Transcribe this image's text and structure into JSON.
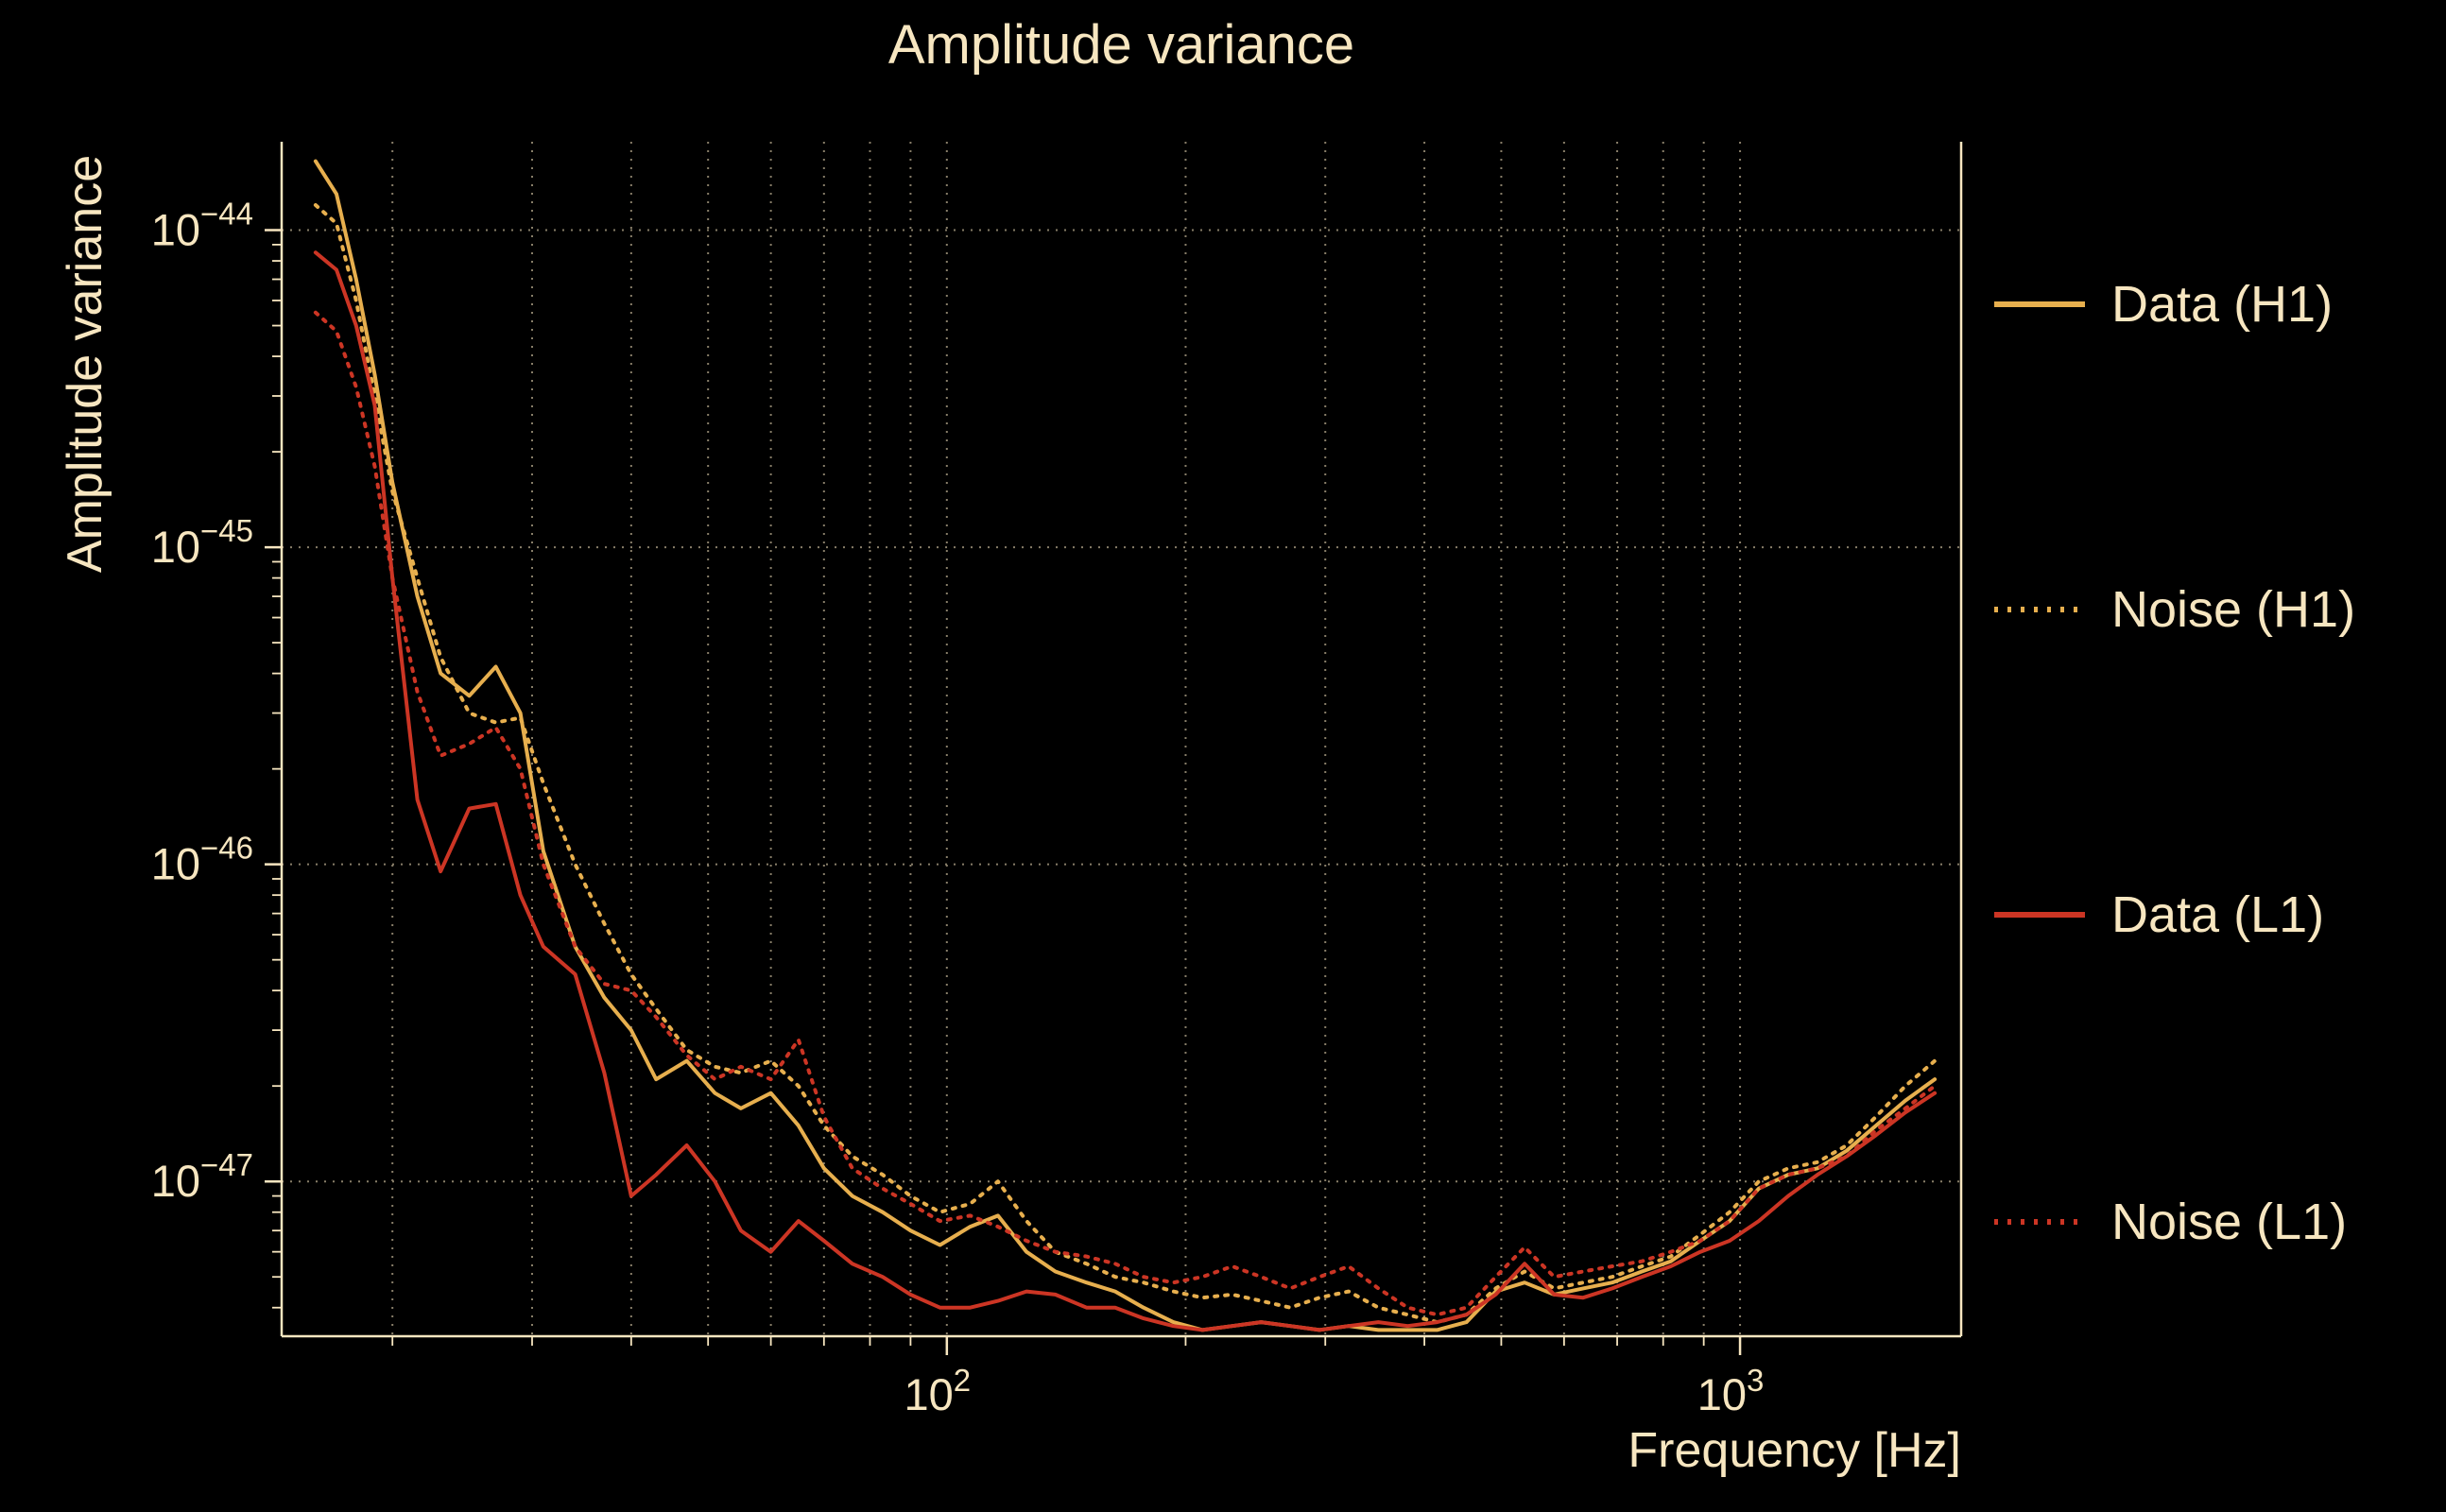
{
  "chart_data": {
    "type": "line",
    "title": "Amplitude variance",
    "xlabel": "Frequency [Hz]",
    "ylabel": "Amplitude variance",
    "xscale": "log",
    "yscale": "log",
    "xlim": [
      14.5,
      1900
    ],
    "ylim": [
      3.25e-48,
      1.9e-44
    ],
    "grid": true,
    "legend_position": "right",
    "background_color": "#000000",
    "text_color": "#f7e6c0",
    "grid_color": "#f7e6c0",
    "axis_color": "#f7e6c0",
    "x_grid": [
      20,
      30,
      40,
      50,
      60,
      70,
      80,
      90,
      100,
      200,
      300,
      400,
      500,
      600,
      700,
      800,
      900,
      1000
    ],
    "x_ticks": [
      {
        "v": 100,
        "base": "10",
        "exp": "2"
      },
      {
        "v": 1000,
        "base": "10",
        "exp": "3"
      }
    ],
    "y_ticks": [
      {
        "v": 1e-44,
        "base": "10",
        "exp": "−44"
      },
      {
        "v": 1e-45,
        "base": "10",
        "exp": "−45"
      },
      {
        "v": 1e-46,
        "base": "10",
        "exp": "−46"
      },
      {
        "v": 1e-47,
        "base": "10",
        "exp": "−47"
      }
    ],
    "x": [
      16,
      17,
      18,
      19,
      20,
      21.5,
      23,
      25,
      27,
      29,
      31,
      34,
      37,
      40,
      43,
      47,
      51,
      55,
      60,
      65,
      70,
      76,
      83,
      90,
      98,
      107,
      116,
      126,
      137,
      150,
      163,
      177,
      193,
      210,
      229,
      249,
      271,
      295,
      321,
      350,
      381,
      415,
      452,
      492,
      535,
      583,
      634,
      690,
      752,
      818,
      891,
      970,
      1056,
      1150,
      1252,
      1363,
      1484,
      1616,
      1760
    ],
    "series": [
      {
        "name": "Data (H1)",
        "color": "#e7af4e",
        "style": "solid",
        "values": [
          1.65e-44,
          1.3e-44,
          7e-45,
          3.5e-45,
          1.6e-45,
          7e-46,
          4e-46,
          3.4e-46,
          4.2e-46,
          3e-46,
          1.1e-46,
          5.5e-47,
          3.8e-47,
          3e-47,
          2.1e-47,
          2.4e-47,
          1.9e-47,
          1.7e-47,
          1.9e-47,
          1.5e-47,
          1.1e-47,
          9e-48,
          8e-48,
          7e-48,
          6.3e-48,
          7.2e-48,
          7.8e-48,
          6e-48,
          5.2e-48,
          4.8e-48,
          4.5e-48,
          4e-48,
          3.6e-48,
          3.4e-48,
          3.5e-48,
          3.6e-48,
          3.5e-48,
          3.4e-48,
          3.5e-48,
          3.4e-48,
          3.4e-48,
          3.4e-48,
          3.6e-48,
          4.5e-48,
          4.8e-48,
          4.4e-48,
          4.6e-48,
          4.8e-48,
          5.2e-48,
          5.6e-48,
          6.5e-48,
          7.5e-48,
          9.5e-48,
          1.05e-47,
          1.1e-47,
          1.25e-47,
          1.5e-47,
          1.8e-47,
          2.1e-47
        ]
      },
      {
        "name": "Noise (H1)",
        "color": "#e7af4e",
        "style": "dotted",
        "values": [
          1.2e-44,
          1.05e-44,
          6e-45,
          3e-45,
          1.5e-45,
          8e-46,
          4.5e-46,
          3e-46,
          2.8e-46,
          2.9e-46,
          1.8e-46,
          1e-46,
          6.5e-47,
          4.5e-47,
          3.5e-47,
          2.6e-47,
          2.3e-47,
          2.2e-47,
          2.4e-47,
          2e-47,
          1.5e-47,
          1.2e-47,
          1.05e-47,
          9e-48,
          8e-48,
          8.5e-48,
          1e-47,
          7.5e-48,
          6e-48,
          5.5e-48,
          5e-48,
          4.8e-48,
          4.5e-48,
          4.3e-48,
          4.4e-48,
          4.2e-48,
          4e-48,
          4.3e-48,
          4.5e-48,
          4e-48,
          3.8e-48,
          3.6e-48,
          3.8e-48,
          4.6e-48,
          5.2e-48,
          4.6e-48,
          4.8e-48,
          5e-48,
          5.4e-48,
          5.8e-48,
          6.8e-48,
          8e-48,
          1e-47,
          1.1e-47,
          1.15e-47,
          1.3e-47,
          1.6e-47,
          2e-47,
          2.4e-47
        ]
      },
      {
        "name": "Data (L1)",
        "color": "#cc3524",
        "style": "solid",
        "values": [
          8.5e-45,
          7.5e-45,
          5e-45,
          2.8e-45,
          8e-46,
          1.6e-46,
          9.5e-47,
          1.5e-46,
          1.55e-46,
          8e-47,
          5.5e-47,
          4.5e-47,
          2.2e-47,
          9e-48,
          1.05e-47,
          1.3e-47,
          1e-47,
          7e-48,
          6e-48,
          7.5e-48,
          6.5e-48,
          5.5e-48,
          5e-48,
          4.4e-48,
          4e-48,
          4e-48,
          4.2e-48,
          4.5e-48,
          4.4e-48,
          4e-48,
          4e-48,
          3.7e-48,
          3.5e-48,
          3.4e-48,
          3.5e-48,
          3.6e-48,
          3.5e-48,
          3.4e-48,
          3.5e-48,
          3.6e-48,
          3.5e-48,
          3.6e-48,
          3.8e-48,
          4.4e-48,
          5.5e-48,
          4.4e-48,
          4.3e-48,
          4.6e-48,
          5e-48,
          5.4e-48,
          6e-48,
          6.5e-48,
          7.5e-48,
          9e-48,
          1.05e-47,
          1.2e-47,
          1.4e-47,
          1.65e-47,
          1.9e-47
        ]
      },
      {
        "name": "Noise (L1)",
        "color": "#cc3524",
        "style": "dotted",
        "values": [
          5.5e-45,
          4.8e-45,
          3.2e-45,
          1.8e-45,
          8e-46,
          3.5e-46,
          2.2e-46,
          2.4e-46,
          2.7e-46,
          2e-46,
          1e-46,
          5.5e-47,
          4.2e-47,
          4e-47,
          3.3e-47,
          2.5e-47,
          2.1e-47,
          2.3e-47,
          2.1e-47,
          2.8e-47,
          1.6e-47,
          1.1e-47,
          9.5e-48,
          8.5e-48,
          7.5e-48,
          7.8e-48,
          7.2e-48,
          6.5e-48,
          6e-48,
          5.8e-48,
          5.5e-48,
          5e-48,
          4.8e-48,
          5e-48,
          5.4e-48,
          5e-48,
          4.6e-48,
          5e-48,
          5.4e-48,
          4.6e-48,
          4e-48,
          3.8e-48,
          4e-48,
          5e-48,
          6.2e-48,
          5e-48,
          5.2e-48,
          5.4e-48,
          5.6e-48,
          6e-48,
          6.5e-48,
          7.5e-48,
          9.5e-48,
          1.05e-47,
          1.1e-47,
          1.2e-47,
          1.45e-47,
          1.7e-47,
          2e-47
        ]
      }
    ]
  }
}
